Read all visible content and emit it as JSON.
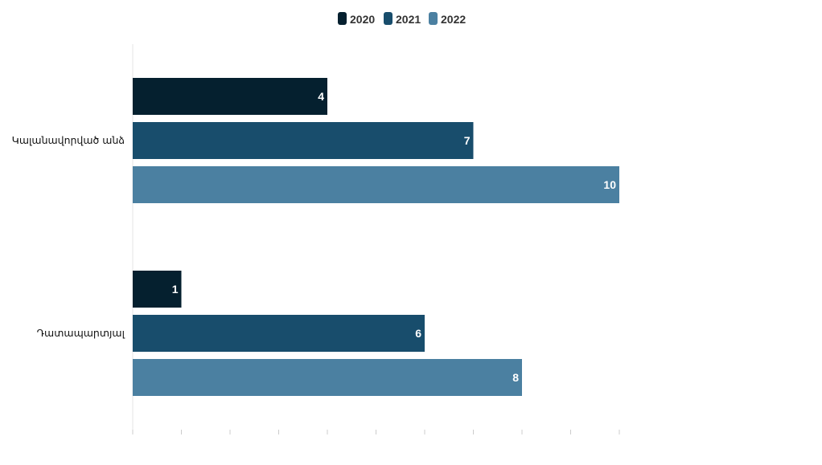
{
  "chart_data": {
    "type": "bar",
    "orientation": "horizontal",
    "categories": [
      "Կալանավորված անձ",
      "Դատապարտյալ"
    ],
    "series": [
      {
        "name": "2020",
        "values": [
          4,
          1
        ],
        "color": "#05202f"
      },
      {
        "name": "2021",
        "values": [
          7,
          6
        ],
        "color": "#184d6c"
      },
      {
        "name": "2022",
        "values": [
          10,
          8
        ],
        "color": "#4b80a1"
      }
    ],
    "xlim": [
      0,
      10
    ],
    "grid": false,
    "legend_position": "top-center",
    "data_labels": true,
    "title": "",
    "xlabel": "",
    "ylabel": ""
  }
}
